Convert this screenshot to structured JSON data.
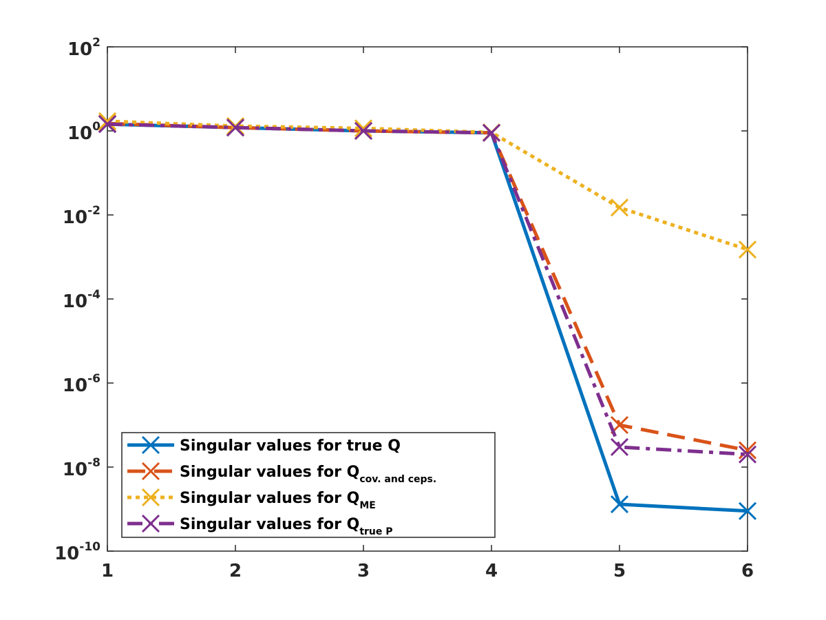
{
  "chart_data": {
    "type": "line",
    "title": "",
    "xlabel": "",
    "ylabel": "",
    "yscale": "log",
    "x": [
      1,
      2,
      3,
      4,
      5,
      6
    ],
    "xlim": [
      1,
      6
    ],
    "ylim_exponents": [
      -10,
      2
    ],
    "x_ticks": [
      "1",
      "2",
      "3",
      "4",
      "5",
      "6"
    ],
    "y_ticks": [
      {
        "exp": 2,
        "base": "10",
        "sup": "2"
      },
      {
        "exp": 0,
        "base": "10",
        "sup": "0"
      },
      {
        "exp": -2,
        "base": "10",
        "sup": "-2"
      },
      {
        "exp": -4,
        "base": "10",
        "sup": "-4"
      },
      {
        "exp": -6,
        "base": "10",
        "sup": "-6"
      },
      {
        "exp": -8,
        "base": "10",
        "sup": "-8"
      },
      {
        "exp": -10,
        "base": "10",
        "sup": "-10"
      }
    ],
    "legend_position": "bottom-left",
    "series": [
      {
        "name": "Singular values for true Q",
        "label_main": "Singular values for true Q",
        "label_sub": "",
        "color": "#0072bd",
        "dash": "solid",
        "values": [
          1.45,
          1.2,
          1.0,
          0.9,
          1.3e-09,
          9e-10
        ]
      },
      {
        "name": "Singular values for Q_cov. and ceps.",
        "label_main": "Singular values for Q",
        "label_sub": "cov. and ceps.",
        "color": "#d95319",
        "dash": "dashed",
        "values": [
          1.5,
          1.2,
          1.0,
          0.9,
          1e-07,
          2.5e-08
        ]
      },
      {
        "name": "Singular values for Q_ME",
        "label_main": "Singular values for Q",
        "label_sub": "ME",
        "color": "#edb120",
        "dash": "dotted",
        "values": [
          1.7,
          1.3,
          1.15,
          0.92,
          0.015,
          0.0015
        ]
      },
      {
        "name": "Singular values for Q_true P",
        "label_main": "Singular values for Q",
        "label_sub": "true P",
        "color": "#7e2f8e",
        "dash": "dashdot",
        "values": [
          1.45,
          1.2,
          1.0,
          0.9,
          3e-08,
          2e-08
        ]
      }
    ]
  }
}
